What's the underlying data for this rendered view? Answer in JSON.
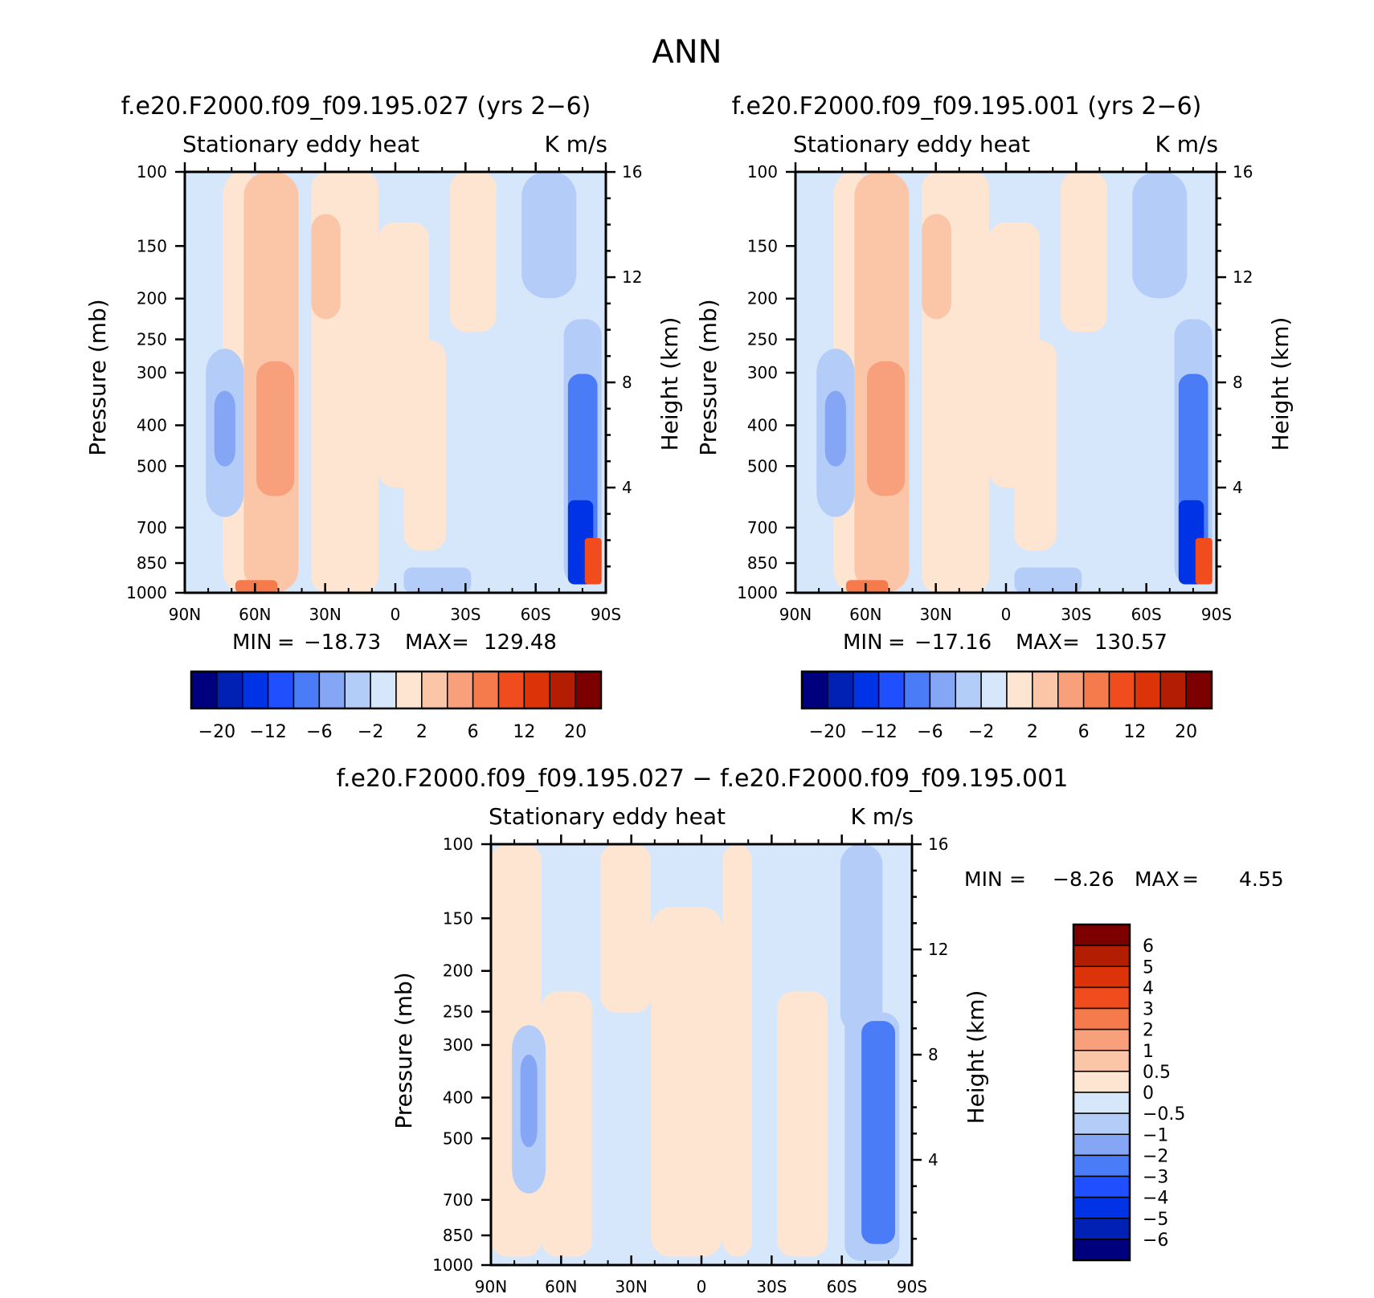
{
  "figure": {
    "title": "ANN"
  },
  "chart_data": [
    {
      "type": "heatmap",
      "title": "f.e20.F2000.f09_f09.195.027 (yrs 2−6)",
      "left_label": "Stationary eddy heat",
      "right_label": "K m/s",
      "ylabel": "Pressure (mb)",
      "ylabel_right": "Height (km)",
      "x_ticks": [
        "90N",
        "60N",
        "30N",
        "0",
        "30S",
        "60S",
        "90S"
      ],
      "y_ticks": [
        "100",
        "150",
        "200",
        "250",
        "300",
        "400",
        "500",
        "700",
        "850",
        "1000"
      ],
      "y2_ticks": [
        "4",
        "8",
        "12",
        "16"
      ],
      "min_label": "MIN",
      "max_label": "MAX",
      "min": "−18.73",
      "max": "129.48",
      "colorbar_ticks": [
        "−20",
        "−12",
        "−6",
        "−2",
        "2",
        "6",
        "12",
        "20"
      ]
    },
    {
      "type": "heatmap",
      "title": "f.e20.F2000.f09_f09.195.001 (yrs 2−6)",
      "left_label": "Stationary eddy heat",
      "right_label": "K m/s",
      "ylabel": "Pressure (mb)",
      "ylabel_right": "Height (km)",
      "x_ticks": [
        "90N",
        "60N",
        "30N",
        "0",
        "30S",
        "60S",
        "90S"
      ],
      "y_ticks": [
        "100",
        "150",
        "200",
        "250",
        "300",
        "400",
        "500",
        "700",
        "850",
        "1000"
      ],
      "y2_ticks": [
        "4",
        "8",
        "12",
        "16"
      ],
      "min_label": "MIN",
      "max_label": "MAX",
      "min": "−17.16",
      "max": "130.57",
      "colorbar_ticks": [
        "−20",
        "−12",
        "−6",
        "−2",
        "2",
        "6",
        "12",
        "20"
      ]
    },
    {
      "type": "heatmap",
      "title": "f.e20.F2000.f09_f09.195.027 − f.e20.F2000.f09_f09.195.001",
      "left_label": "Stationary eddy heat",
      "right_label": "K m/s",
      "ylabel": "Pressure (mb)",
      "ylabel_right": "Height (km)",
      "x_ticks": [
        "90N",
        "60N",
        "30N",
        "0",
        "30S",
        "60S",
        "90S"
      ],
      "y_ticks": [
        "100",
        "150",
        "200",
        "250",
        "300",
        "400",
        "500",
        "700",
        "850",
        "1000"
      ],
      "y2_ticks": [
        "4",
        "8",
        "12",
        "16"
      ],
      "min_label": "MIN",
      "max_label": "MAX",
      "min": "−8.26",
      "max": "4.55",
      "colorbar_ticks": [
        "6",
        "5",
        "4",
        "3",
        "2",
        "1",
        "0.5",
        "0",
        "−0.5",
        "−1",
        "−2",
        "−3",
        "−4",
        "−5",
        "−6"
      ]
    }
  ],
  "palette": [
    "#00007f",
    "#0021b3",
    "#0033e6",
    "#1f4fff",
    "#4b7cf7",
    "#84a6f5",
    "#b4ccf8",
    "#d7e7fb",
    "#fde5d2",
    "#fbc6a8",
    "#f8a07c",
    "#f57a4c",
    "#f04c1e",
    "#dc3309",
    "#b31e03",
    "#7d0000"
  ]
}
